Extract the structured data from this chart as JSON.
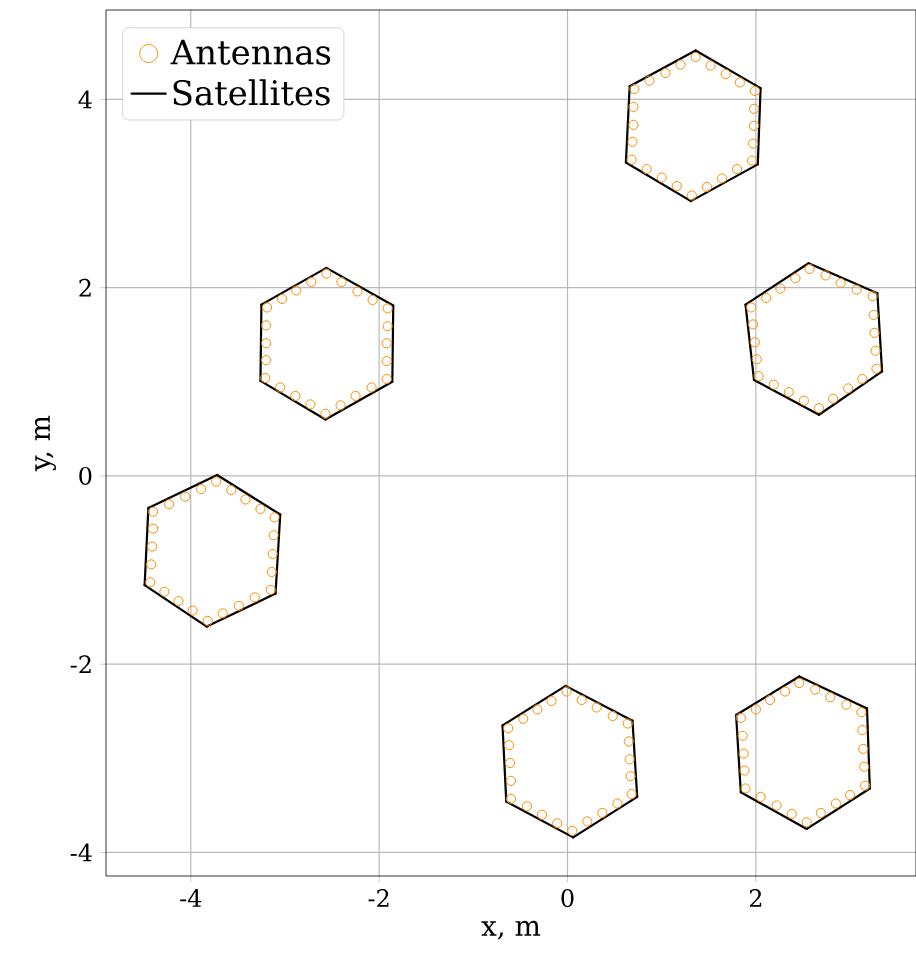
{
  "chart_data": {
    "type": "scatter",
    "xlabel": "x, m",
    "ylabel": "y, m",
    "xlim": [
      -4.9,
      3.7
    ],
    "ylim": [
      -4.25,
      4.95
    ],
    "xticks": [
      -4,
      -2,
      0,
      2
    ],
    "yticks": [
      -4,
      -2,
      0,
      2,
      4
    ],
    "grid": true,
    "legend": "top left",
    "series": [
      {
        "name": "Antennas",
        "marker": "circle",
        "color": "#ff8c00",
        "x": [
          -2.56,
          -2.4,
          -2.23,
          -2.07,
          -1.91,
          -1.91,
          -1.92,
          -1.92,
          -1.92,
          -2.08,
          -2.25,
          -2.41,
          -2.57,
          -2.73,
          -2.89,
          -3.05,
          -3.21,
          -3.2,
          -3.2,
          -3.2,
          -3.19,
          -3.03,
          -2.88,
          -2.72,
          -3.73,
          -3.57,
          -3.42,
          -3.26,
          -3.11,
          -3.12,
          -3.13,
          -3.14,
          -3.15,
          -3.32,
          -3.49,
          -3.66,
          -3.82,
          -3.98,
          -4.13,
          -4.28,
          -4.43,
          -4.42,
          -4.41,
          -4.4,
          -4.4,
          -4.23,
          -4.06,
          -3.89,
          1.36,
          1.52,
          1.68,
          1.83,
          1.99,
          1.98,
          1.98,
          1.97,
          1.96,
          1.8,
          1.64,
          1.48,
          1.32,
          1.16,
          1.0,
          0.84,
          0.68,
          0.69,
          0.7,
          0.7,
          0.71,
          0.87,
          1.04,
          1.2,
          2.57,
          2.74,
          2.9,
          3.07,
          3.24,
          3.25,
          3.26,
          3.27,
          3.28,
          3.13,
          2.98,
          2.82,
          2.67,
          2.51,
          2.35,
          2.19,
          2.03,
          2.01,
          1.99,
          1.97,
          1.95,
          2.11,
          2.26,
          2.42,
          -0.01,
          0.15,
          0.31,
          0.48,
          0.64,
          0.65,
          0.66,
          0.67,
          0.68,
          0.53,
          0.37,
          0.21,
          0.05,
          -0.11,
          -0.27,
          -0.43,
          -0.6,
          -0.6,
          -0.61,
          -0.62,
          -0.63,
          -0.47,
          -0.32,
          -0.17,
          2.46,
          2.63,
          2.79,
          2.96,
          3.12,
          3.13,
          3.14,
          3.15,
          3.16,
          3.0,
          2.85,
          2.69,
          2.54,
          2.38,
          2.22,
          2.05,
          1.89,
          1.88,
          1.87,
          1.86,
          1.84,
          2.0,
          2.15,
          2.31
        ],
        "values": [
          2.15,
          2.06,
          1.96,
          1.87,
          1.78,
          1.59,
          1.41,
          1.22,
          1.03,
          0.94,
          0.85,
          0.75,
          0.66,
          0.76,
          0.85,
          0.94,
          1.04,
          1.23,
          1.41,
          1.6,
          1.79,
          1.88,
          1.97,
          2.06,
          -0.06,
          -0.15,
          -0.25,
          -0.35,
          -0.44,
          -0.63,
          -0.83,
          -1.02,
          -1.21,
          -1.29,
          -1.38,
          -1.46,
          -1.54,
          -1.43,
          -1.33,
          -1.23,
          -1.13,
          -0.94,
          -0.75,
          -0.56,
          -0.38,
          -0.3,
          -0.22,
          -0.14,
          4.45,
          4.36,
          4.27,
          4.18,
          4.09,
          3.9,
          3.72,
          3.53,
          3.35,
          3.26,
          3.16,
          3.07,
          2.98,
          3.08,
          3.17,
          3.26,
          3.36,
          3.55,
          3.73,
          3.92,
          4.11,
          4.2,
          4.28,
          4.37,
          2.2,
          2.13,
          2.05,
          1.98,
          1.91,
          1.71,
          1.52,
          1.33,
          1.14,
          1.03,
          0.93,
          0.82,
          0.72,
          0.8,
          0.89,
          0.97,
          1.06,
          1.24,
          1.42,
          1.61,
          1.79,
          1.89,
          1.99,
          2.1,
          -2.29,
          -2.38,
          -2.46,
          -2.55,
          -2.63,
          -2.82,
          -3.01,
          -3.19,
          -3.38,
          -3.48,
          -3.58,
          -3.67,
          -3.77,
          -3.69,
          -3.6,
          -3.51,
          -3.43,
          -3.24,
          -3.05,
          -2.86,
          -2.68,
          -2.58,
          -2.48,
          -2.39,
          -2.2,
          -2.27,
          -2.35,
          -2.43,
          -2.51,
          -2.7,
          -2.9,
          -3.09,
          -3.29,
          -3.39,
          -3.48,
          -3.58,
          -3.68,
          -3.59,
          -3.5,
          -3.41,
          -3.32,
          -3.13,
          -2.95,
          -2.76,
          -2.57,
          -2.48,
          -2.38,
          -2.29
        ]
      },
      {
        "name": "Satellites",
        "type": "line",
        "marker": "none",
        "color": "#000000",
        "x": [
          -2.56,
          -1.85,
          null,
          -1.85,
          -1.86,
          null,
          -1.86,
          -2.57,
          null,
          -2.57,
          -3.26,
          null,
          -3.26,
          -3.25,
          null,
          -3.25,
          -2.56,
          null,
          -3.72,
          -3.05,
          null,
          -3.05,
          -3.1,
          null,
          -3.1,
          -3.83,
          null,
          -3.83,
          -4.49,
          null,
          -4.49,
          -4.45,
          null,
          -4.45,
          -3.72,
          null,
          1.36,
          2.05,
          null,
          2.05,
          2.02,
          null,
          2.02,
          1.31,
          null,
          1.31,
          0.62,
          null,
          0.62,
          0.66,
          null,
          0.66,
          1.36,
          null,
          2.56,
          3.29,
          null,
          3.29,
          3.34,
          null,
          3.34,
          2.67,
          null,
          2.67,
          1.98,
          null,
          1.98,
          1.89,
          null,
          1.89,
          2.56,
          null,
          -0.02,
          0.69,
          null,
          0.69,
          0.74,
          null,
          0.74,
          0.06,
          null,
          0.06,
          -0.65,
          null,
          -0.65,
          -0.69,
          null,
          -0.69,
          -0.02,
          null,
          2.46,
          3.18,
          null,
          3.18,
          3.21,
          null,
          3.21,
          2.54,
          null,
          2.54,
          1.84,
          null,
          1.84,
          1.79,
          null,
          1.79,
          2.46
        ],
        "values": [
          2.21,
          1.81,
          null,
          1.81,
          1.0,
          null,
          1.0,
          0.6,
          null,
          0.6,
          1.01,
          null,
          1.01,
          1.82,
          null,
          1.82,
          2.21,
          null,
          0.01,
          -0.41,
          null,
          -0.41,
          -1.25,
          null,
          -1.25,
          -1.6,
          null,
          -1.6,
          -1.16,
          null,
          -1.16,
          -0.34,
          null,
          -0.34,
          0.01,
          null,
          4.52,
          4.12,
          null,
          4.12,
          3.31,
          null,
          3.31,
          2.92,
          null,
          2.92,
          3.33,
          null,
          3.33,
          4.14,
          null,
          4.14,
          4.52,
          null,
          2.26,
          1.94,
          null,
          1.94,
          1.11,
          null,
          1.11,
          0.65,
          null,
          0.65,
          1.02,
          null,
          1.02,
          1.82,
          null,
          1.82,
          2.26,
          null,
          -2.23,
          -2.6,
          null,
          -2.6,
          -3.41,
          null,
          -3.41,
          -3.84,
          null,
          -3.84,
          -3.46,
          null,
          -3.46,
          -2.65,
          null,
          -2.65,
          -2.23,
          null,
          -2.13,
          -2.47,
          null,
          -2.47,
          -3.32,
          null,
          -3.32,
          -3.75,
          null,
          -3.75,
          -3.36,
          null,
          -3.36,
          -2.54,
          null,
          -2.54,
          -2.13
        ]
      }
    ]
  }
}
